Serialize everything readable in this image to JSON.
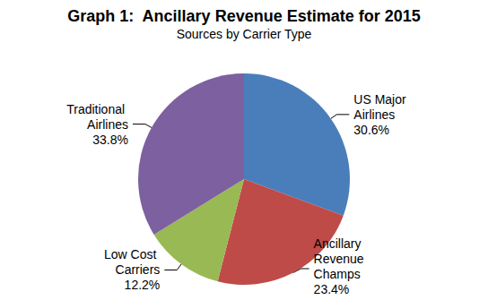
{
  "chart_data": {
    "type": "pie",
    "title": "Graph 1:  Ancillary Revenue Estimate for 2015",
    "subtitle": "Sources by Carrier Type",
    "categories": [
      "US Major Airlines",
      "Ancillary Revenue Champs",
      "Low Cost Carriers",
      "Traditional Airlines"
    ],
    "values": [
      30.6,
      23.4,
      12.2,
      33.8
    ],
    "value_labels": [
      "30.6%",
      "23.4%",
      "12.2%",
      "33.8%"
    ],
    "colors": [
      "#4a7ebb",
      "#be4b48",
      "#98b954",
      "#7d60a0"
    ],
    "data_labels": true
  }
}
